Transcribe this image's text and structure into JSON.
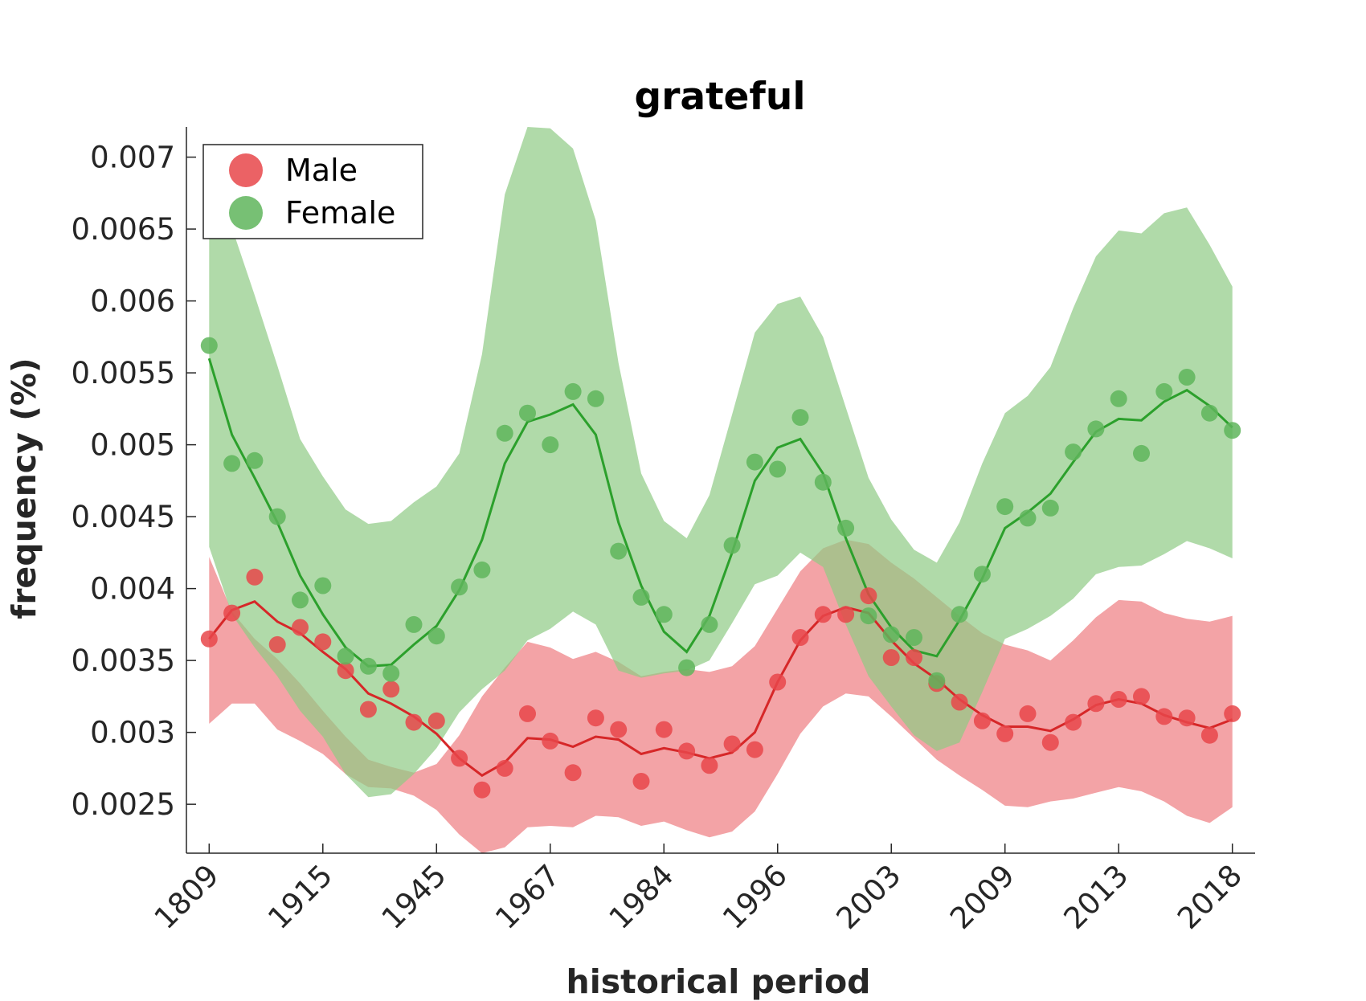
{
  "chart_data": {
    "type": "line",
    "title": "grateful",
    "xlabel": "historical period",
    "ylabel": "frequency (%)",
    "x_tick_labels": [
      "1809",
      "1915",
      "1945",
      "1967",
      "1984",
      "1996",
      "2003",
      "2009",
      "2013",
      "2018"
    ],
    "y_tick_labels": [
      "0.0025",
      "0.003",
      "0.0035",
      "0.004",
      "0.0045",
      "0.005",
      "0.0055",
      "0.006",
      "0.0065",
      "0.007"
    ],
    "y_ticks": [
      0.0025,
      0.003,
      0.0035,
      0.004,
      0.0045,
      0.005,
      0.0055,
      0.006,
      0.0065,
      0.007
    ],
    "xlim": [
      -1,
      46
    ],
    "ylim": [
      0.00216,
      0.00721
    ],
    "x_tick_positions": [
      0,
      5,
      10,
      15,
      20,
      25,
      30,
      35,
      40,
      45
    ],
    "legend_position": "top-left",
    "grid": false,
    "series": [
      {
        "name": "Male",
        "color": "#e8464a",
        "line_color": "#d62728",
        "band_color": "#ee7c80",
        "points": [
          0.00365,
          0.00383,
          0.00408,
          0.00361,
          0.00373,
          0.00363,
          0.00343,
          0.00316,
          0.0033,
          0.00307,
          0.00308,
          0.00282,
          0.0026,
          0.00275,
          0.00313,
          0.00294,
          0.00272,
          0.0031,
          0.00302,
          0.00266,
          0.00302,
          0.00287,
          0.00277,
          0.00292,
          0.00288,
          0.00335,
          0.00366,
          0.00382,
          0.00382,
          0.00395,
          0.00352,
          0.00352,
          0.00334,
          0.00321,
          0.00308,
          0.00299,
          0.00313,
          0.00293,
          0.00307,
          0.0032,
          0.00323,
          0.00325,
          0.00311,
          0.0031,
          0.00298,
          0.00313
        ],
        "smoothed": [
          0.00365,
          0.00385,
          0.00391,
          0.00377,
          0.00369,
          0.00356,
          0.00344,
          0.00327,
          0.0032,
          0.00311,
          0.00299,
          0.00282,
          0.0027,
          0.00279,
          0.00296,
          0.00295,
          0.0029,
          0.00297,
          0.00295,
          0.00285,
          0.00289,
          0.00286,
          0.00282,
          0.00286,
          0.003,
          0.00335,
          0.00364,
          0.00381,
          0.00387,
          0.00383,
          0.00364,
          0.00348,
          0.00337,
          0.00323,
          0.00312,
          0.00304,
          0.00304,
          0.00301,
          0.00309,
          0.00319,
          0.00323,
          0.0032,
          0.00312,
          0.00307,
          0.00303,
          0.00309
        ],
        "upper": [
          0.00422,
          0.00384,
          0.00365,
          0.00351,
          0.00334,
          0.00315,
          0.00297,
          0.00281,
          0.00276,
          0.00272,
          0.00278,
          0.00298,
          0.00325,
          0.00345,
          0.00363,
          0.00359,
          0.00351,
          0.00356,
          0.00349,
          0.00339,
          0.00342,
          0.00344,
          0.00342,
          0.00346,
          0.0036,
          0.00386,
          0.00412,
          0.00428,
          0.00434,
          0.00431,
          0.00418,
          0.00407,
          0.00394,
          0.00381,
          0.00369,
          0.00361,
          0.00357,
          0.0035,
          0.00364,
          0.0038,
          0.00392,
          0.00391,
          0.00383,
          0.00379,
          0.00377,
          0.00381
        ],
        "lower": [
          0.00306,
          0.0032,
          0.0032,
          0.00302,
          0.00294,
          0.00285,
          0.00271,
          0.00262,
          0.00261,
          0.00256,
          0.00246,
          0.00229,
          0.00216,
          0.0022,
          0.00234,
          0.00235,
          0.00234,
          0.00242,
          0.00241,
          0.00235,
          0.00238,
          0.00232,
          0.00227,
          0.00231,
          0.00245,
          0.00271,
          0.00299,
          0.00318,
          0.00327,
          0.00325,
          0.00311,
          0.00296,
          0.00281,
          0.0027,
          0.0026,
          0.00249,
          0.00248,
          0.00252,
          0.00254,
          0.00258,
          0.00262,
          0.00259,
          0.00252,
          0.00242,
          0.00237,
          0.00248
        ]
      },
      {
        "name": "Female",
        "color": "#5fb55c",
        "line_color": "#2ca02c",
        "band_color": "#8fcb85",
        "points": [
          0.00569,
          0.00487,
          0.00489,
          0.0045,
          0.00392,
          0.00402,
          0.00353,
          0.00346,
          0.00341,
          0.00375,
          0.00367,
          0.00401,
          0.00413,
          0.00508,
          0.00522,
          0.005,
          0.00537,
          0.00532,
          0.00426,
          0.00394,
          0.00382,
          0.00345,
          0.00375,
          0.0043,
          0.00488,
          0.00483,
          0.00519,
          0.00474,
          0.00442,
          0.00381,
          0.00368,
          0.00366,
          0.00336,
          0.00382,
          0.0041,
          0.00457,
          0.00449,
          0.00456,
          0.00495,
          0.00511,
          0.00532,
          0.00494,
          0.00537,
          0.00547,
          0.00522,
          0.0051
        ],
        "smoothed": [
          0.0056,
          0.00507,
          0.00477,
          0.00446,
          0.00409,
          0.00382,
          0.00359,
          0.00346,
          0.00347,
          0.00361,
          0.00374,
          0.00399,
          0.00434,
          0.00487,
          0.00516,
          0.00521,
          0.00528,
          0.00507,
          0.00446,
          0.00402,
          0.0037,
          0.00356,
          0.00381,
          0.00425,
          0.00475,
          0.00498,
          0.00504,
          0.0048,
          0.00435,
          0.00396,
          0.00373,
          0.00357,
          0.00353,
          0.00378,
          0.00407,
          0.00442,
          0.00453,
          0.00466,
          0.00488,
          0.00509,
          0.00518,
          0.00517,
          0.0053,
          0.00538,
          0.00527,
          0.00512
        ],
        "upper": [
          0.0066,
          0.00651,
          0.00604,
          0.00555,
          0.00504,
          0.00478,
          0.00455,
          0.00445,
          0.00447,
          0.0046,
          0.00471,
          0.00494,
          0.00563,
          0.00674,
          0.00721,
          0.0072,
          0.00706,
          0.00656,
          0.00557,
          0.0048,
          0.00447,
          0.00435,
          0.00465,
          0.00521,
          0.00578,
          0.00598,
          0.00603,
          0.00575,
          0.00526,
          0.00477,
          0.00448,
          0.00427,
          0.00418,
          0.00446,
          0.00487,
          0.00522,
          0.00534,
          0.00554,
          0.00595,
          0.00631,
          0.00649,
          0.00647,
          0.00661,
          0.00665,
          0.00639,
          0.0061
        ],
        "lower": [
          0.00429,
          0.00382,
          0.00359,
          0.00339,
          0.00315,
          0.00297,
          0.00271,
          0.00255,
          0.00257,
          0.00271,
          0.00289,
          0.00314,
          0.0033,
          0.00343,
          0.00364,
          0.00372,
          0.00384,
          0.00375,
          0.00343,
          0.00338,
          0.00341,
          0.00343,
          0.0035,
          0.00376,
          0.00403,
          0.00409,
          0.00425,
          0.00415,
          0.00375,
          0.00339,
          0.00318,
          0.00298,
          0.00287,
          0.00293,
          0.00328,
          0.00365,
          0.00372,
          0.00381,
          0.00393,
          0.0041,
          0.00415,
          0.00416,
          0.00424,
          0.00433,
          0.00428,
          0.00421
        ]
      }
    ]
  }
}
